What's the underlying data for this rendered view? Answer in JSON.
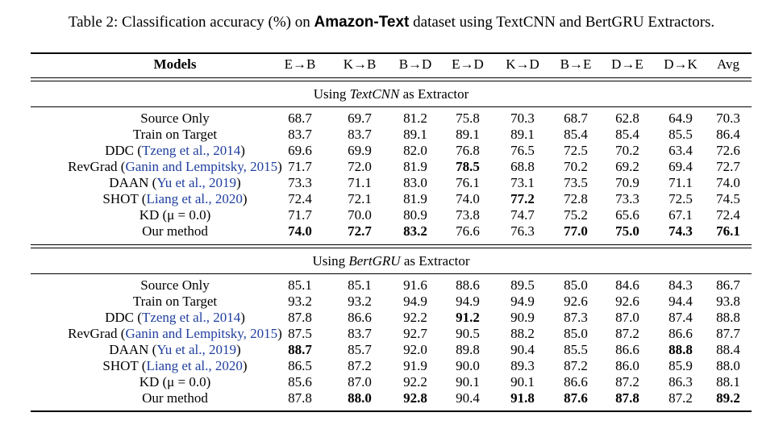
{
  "caption": {
    "prefix": "Table 2: Classification accuracy (%) on ",
    "dataset": "Amazon-Text",
    "suffix": " dataset using TextCNN and BertGRU Extractors."
  },
  "columns": [
    "Models",
    "E→B",
    "K→B",
    "B→D",
    "E→D",
    "K→D",
    "B→E",
    "D→E",
    "D→K",
    "Avg"
  ],
  "sections": [
    {
      "pre": "Using ",
      "extractor": "TextCNN",
      "post": " as Extractor",
      "rows": [
        {
          "name": "Source Only",
          "cite": "",
          "values": [
            "68.7",
            "69.7",
            "81.2",
            "75.8",
            "70.3",
            "68.7",
            "62.8",
            "64.9",
            "70.3"
          ],
          "bold": []
        },
        {
          "name": "Train on Target",
          "cite": "",
          "values": [
            "83.7",
            "83.7",
            "89.1",
            "89.1",
            "89.1",
            "85.4",
            "85.4",
            "85.5",
            "86.4"
          ],
          "bold": []
        },
        {
          "name": "DDC",
          "cite": "Tzeng et al., 2014",
          "values": [
            "69.6",
            "69.9",
            "82.0",
            "76.8",
            "76.5",
            "72.5",
            "70.2",
            "63.4",
            "72.6"
          ],
          "bold": []
        },
        {
          "name": "RevGrad",
          "cite": "Ganin and Lempitsky, 2015",
          "values": [
            "71.7",
            "72.0",
            "81.9",
            "78.5",
            "68.8",
            "70.2",
            "69.2",
            "69.4",
            "72.7"
          ],
          "bold": [
            3
          ]
        },
        {
          "name": "DAAN",
          "cite": "Yu et al., 2019",
          "values": [
            "73.3",
            "71.1",
            "83.0",
            "76.1",
            "73.1",
            "73.5",
            "70.9",
            "71.1",
            "74.0"
          ],
          "bold": []
        },
        {
          "name": "SHOT",
          "cite": "Liang et al., 2020",
          "values": [
            "72.4",
            "72.1",
            "81.9",
            "74.0",
            "77.2",
            "72.8",
            "73.3",
            "72.5",
            "74.5"
          ],
          "bold": [
            4
          ]
        },
        {
          "name": "KD (μ = 0.0)",
          "cite": "",
          "values": [
            "71.7",
            "70.0",
            "80.9",
            "73.8",
            "74.7",
            "75.2",
            "65.6",
            "67.1",
            "72.4"
          ],
          "bold": []
        },
        {
          "name": "Our method",
          "cite": "",
          "values": [
            "74.0",
            "72.7",
            "83.2",
            "76.6",
            "76.3",
            "77.0",
            "75.0",
            "74.3",
            "76.1"
          ],
          "bold": [
            0,
            1,
            2,
            5,
            6,
            7,
            8
          ]
        }
      ]
    },
    {
      "pre": "Using ",
      "extractor": "BertGRU",
      "post": " as Extractor",
      "rows": [
        {
          "name": "Source Only",
          "cite": "",
          "values": [
            "85.1",
            "85.1",
            "91.6",
            "88.6",
            "89.5",
            "85.0",
            "84.6",
            "84.3",
            "86.7"
          ],
          "bold": []
        },
        {
          "name": "Train on Target",
          "cite": "",
          "values": [
            "93.2",
            "93.2",
            "94.9",
            "94.9",
            "94.9",
            "92.6",
            "92.6",
            "94.4",
            "93.8"
          ],
          "bold": []
        },
        {
          "name": "DDC",
          "cite": "Tzeng et al., 2014",
          "values": [
            "87.8",
            "86.6",
            "92.2",
            "91.2",
            "90.9",
            "87.3",
            "87.0",
            "87.4",
            "88.8"
          ],
          "bold": [
            3
          ]
        },
        {
          "name": "RevGrad",
          "cite": "Ganin and Lempitsky, 2015",
          "values": [
            "87.5",
            "83.7",
            "92.7",
            "90.5",
            "88.2",
            "85.0",
            "87.2",
            "86.6",
            "87.7"
          ],
          "bold": []
        },
        {
          "name": "DAAN",
          "cite": "Yu et al., 2019",
          "values": [
            "88.7",
            "85.7",
            "92.0",
            "89.8",
            "90.4",
            "85.5",
            "86.6",
            "88.8",
            "88.4"
          ],
          "bold": [
            0,
            7
          ]
        },
        {
          "name": "SHOT",
          "cite": "Liang et al., 2020",
          "values": [
            "86.5",
            "87.2",
            "91.9",
            "90.0",
            "89.3",
            "87.2",
            "86.0",
            "85.9",
            "88.0"
          ],
          "bold": []
        },
        {
          "name": "KD (μ = 0.0)",
          "cite": "",
          "values": [
            "85.6",
            "87.0",
            "92.2",
            "90.1",
            "90.1",
            "86.6",
            "87.2",
            "86.3",
            "88.1"
          ],
          "bold": []
        },
        {
          "name": "Our method",
          "cite": "",
          "values": [
            "87.8",
            "88.0",
            "92.8",
            "90.4",
            "91.8",
            "87.6",
            "87.8",
            "87.2",
            "89.2"
          ],
          "bold": [
            1,
            2,
            4,
            5,
            6,
            8
          ]
        }
      ]
    }
  ]
}
